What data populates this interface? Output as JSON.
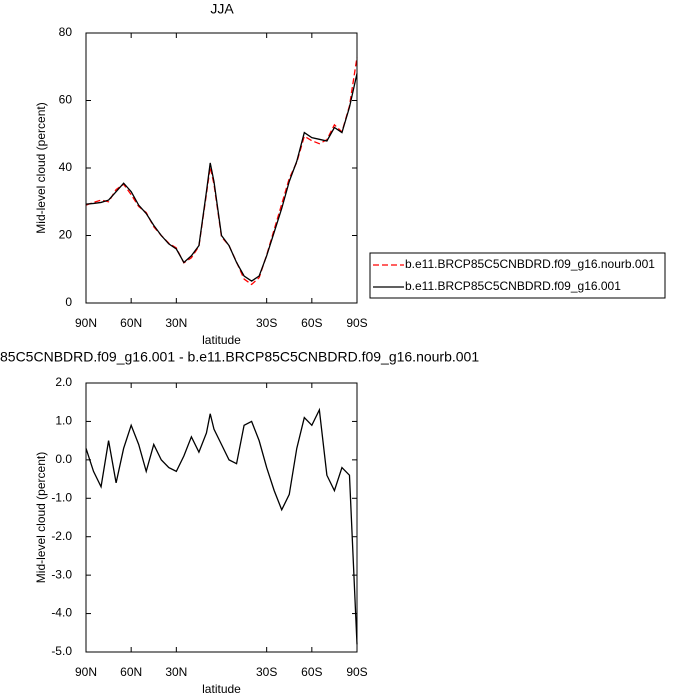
{
  "chart_data": [
    {
      "type": "line",
      "title": "JJA",
      "x_label": "latitude",
      "y_label": "Mid-level cloud (percent)",
      "x": [
        90,
        85,
        80,
        75,
        70,
        65,
        60,
        55,
        50,
        45,
        40,
        35,
        30,
        25,
        20,
        15,
        10,
        7.5,
        5,
        0,
        -5,
        -10,
        -15,
        -20,
        -25,
        -30,
        -35,
        -40,
        -45,
        -50,
        -55,
        -60,
        -65,
        -70,
        -75,
        -80,
        -85,
        -90
      ],
      "xlim": [
        90,
        -90
      ],
      "xticks": [
        {
          "value": 90,
          "label": "90N"
        },
        {
          "value": 60,
          "label": "60N"
        },
        {
          "value": 30,
          "label": "30N"
        },
        {
          "value": -30,
          "label": "30S"
        },
        {
          "value": -60,
          "label": "60S"
        },
        {
          "value": -90,
          "label": "90S"
        }
      ],
      "ylim": [
        0,
        80
      ],
      "yticks": [
        0,
        20,
        40,
        60,
        80
      ],
      "legend": "right",
      "series": [
        {
          "name": "b.e11.BRCP85C5CNBDRD.f09_g16.nourb.001",
          "color": "#ff0000",
          "dashed": true,
          "values": [
            29.0,
            29.8,
            30.5,
            30.0,
            33.6,
            35.2,
            32.1,
            28.6,
            26.8,
            22.6,
            20.0,
            17.7,
            16.3,
            11.9,
            13.4,
            16.8,
            32.3,
            40.3,
            35.2,
            19.6,
            17.0,
            12.1,
            7.1,
            5.5,
            7.5,
            14.2,
            21.8,
            29.3,
            36.9,
            41.7,
            49.4,
            48.1,
            47.2,
            48.4,
            52.8,
            50.7,
            58.4,
            72.8
          ]
        },
        {
          "name": "b.e11.BRCP85C5CNBDRD.f09_g16.001",
          "color": "#000000",
          "dashed": false,
          "values": [
            29.3,
            29.5,
            29.8,
            30.5,
            33,
            35.5,
            33,
            29,
            26.5,
            23,
            20,
            17.5,
            16,
            12,
            14,
            17,
            33,
            41.5,
            36,
            20,
            17,
            12,
            8,
            6.5,
            8,
            14,
            21,
            28,
            36,
            42,
            50.5,
            49,
            48.5,
            48,
            52,
            50.5,
            58,
            68
          ]
        }
      ]
    },
    {
      "type": "line",
      "title": "85C5CNBDRD.f09_g16.001 - b.e11.BRCP85C5CNBDRD.f09_g16.nourb.001",
      "x_label": "latitude",
      "y_label": "Mid-level cloud (percent)",
      "x": [
        90,
        85,
        80,
        75,
        70,
        65,
        60,
        55,
        50,
        45,
        40,
        35,
        30,
        25,
        20,
        15,
        10,
        7.5,
        5,
        0,
        -5,
        -10,
        -15,
        -20,
        -25,
        -30,
        -35,
        -40,
        -45,
        -50,
        -55,
        -60,
        -65,
        -70,
        -75,
        -80,
        -85,
        -90
      ],
      "xlim": [
        90,
        -90
      ],
      "xticks": [
        {
          "value": 90,
          "label": "90N"
        },
        {
          "value": 60,
          "label": "60N"
        },
        {
          "value": 30,
          "label": "30N"
        },
        {
          "value": -30,
          "label": "30S"
        },
        {
          "value": -60,
          "label": "60S"
        },
        {
          "value": -90,
          "label": "90S"
        }
      ],
      "ylim": [
        -5,
        2
      ],
      "yticks": [
        {
          "value": 2,
          "label": "2.0"
        },
        {
          "value": 1,
          "label": "1.0"
        },
        {
          "value": 0,
          "label": "0.0"
        },
        {
          "value": -1,
          "label": "-1.0"
        },
        {
          "value": -2,
          "label": "-2.0"
        },
        {
          "value": -3,
          "label": "-3.0"
        },
        {
          "value": -4,
          "label": "-4.0"
        },
        {
          "value": -5,
          "label": "-5.0"
        }
      ],
      "series": [
        {
          "color": "#000000",
          "dashed": false,
          "values": [
            0.3,
            -0.3,
            -0.7,
            0.5,
            -0.6,
            0.3,
            0.9,
            0.4,
            -0.3,
            0.4,
            0.0,
            -0.2,
            -0.3,
            0.1,
            0.6,
            0.2,
            0.7,
            1.2,
            0.8,
            0.4,
            0.0,
            -0.1,
            0.9,
            1.0,
            0.5,
            -0.2,
            -0.8,
            -1.3,
            -0.9,
            0.3,
            1.1,
            0.9,
            1.3,
            -0.4,
            -0.8,
            -0.2,
            -0.4,
            -4.8
          ]
        }
      ]
    }
  ]
}
